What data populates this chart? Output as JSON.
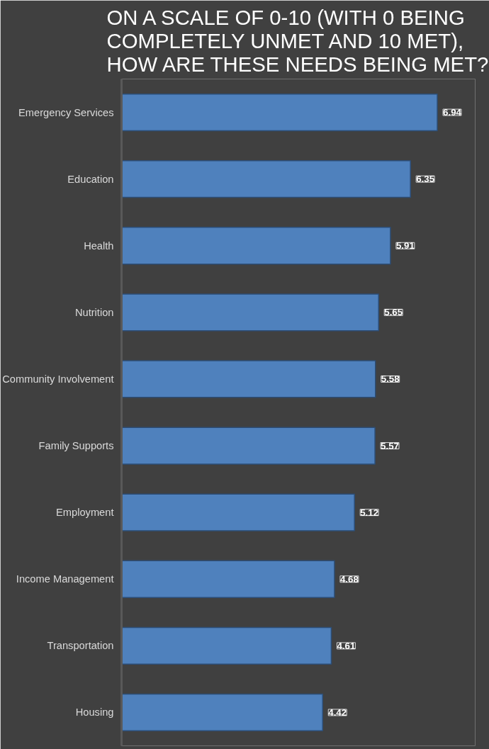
{
  "chart_data": {
    "type": "bar",
    "orientation": "horizontal",
    "title": "ON A SCALE OF 0-10 (WITH 0 BEING COMPLETELY UNMET AND 10 MET), HOW ARE THESE NEEDS BEING MET?",
    "categories": [
      "Emergency Services",
      "Education",
      "Health",
      "Nutrition",
      "Community Involvement",
      "Family Supports",
      "Employment",
      "Income Management",
      "Transportation",
      "Housing"
    ],
    "values": [
      6.94,
      6.35,
      5.91,
      5.65,
      5.58,
      5.57,
      5.12,
      4.68,
      4.61,
      4.42
    ],
    "color": "#4f81bd",
    "data_labels": true
  }
}
